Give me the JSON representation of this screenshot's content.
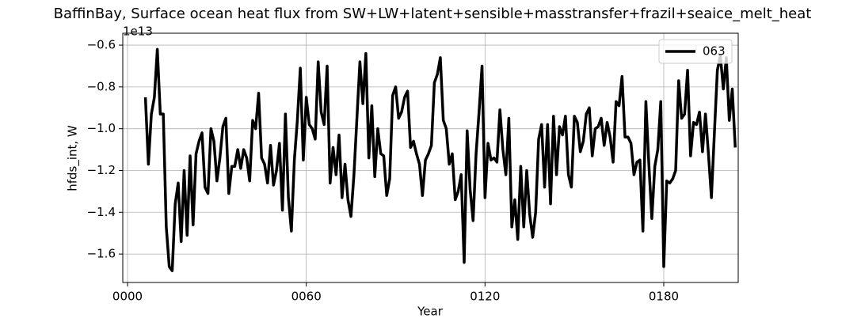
{
  "chart_data": {
    "type": "line",
    "title": "BaffinBay, Surface ocean heat flux from SW+LW+latent+sensible+masstransfer+frazil+seaice_melt_heat",
    "xlabel": "Year",
    "ylabel": "hfds_int, W",
    "offset_label": "1e13",
    "x": [
      6,
      7,
      8,
      9,
      10,
      11,
      12,
      13,
      14,
      15,
      16,
      17,
      18,
      19,
      20,
      21,
      22,
      23,
      24,
      25,
      26,
      27,
      28,
      29,
      30,
      31,
      32,
      33,
      34,
      35,
      36,
      37,
      38,
      39,
      40,
      41,
      42,
      43,
      44,
      45,
      46,
      47,
      48,
      49,
      50,
      51,
      52,
      53,
      54,
      55,
      56,
      57,
      58,
      59,
      60,
      61,
      62,
      63,
      64,
      65,
      66,
      67,
      68,
      69,
      70,
      71,
      72,
      73,
      74,
      75,
      76,
      77,
      78,
      79,
      80,
      81,
      82,
      83,
      84,
      85,
      86,
      87,
      88,
      89,
      90,
      91,
      92,
      93,
      94,
      95,
      96,
      97,
      98,
      99,
      100,
      101,
      102,
      103,
      104,
      105,
      106,
      107,
      108,
      109,
      110,
      111,
      112,
      113,
      114,
      115,
      116,
      117,
      118,
      119,
      120,
      121,
      122,
      123,
      124,
      125,
      126,
      127,
      128,
      129,
      130,
      131,
      132,
      133,
      134,
      135,
      136,
      137,
      138,
      139,
      140,
      141,
      142,
      143,
      144,
      145,
      146,
      147,
      148,
      149,
      150,
      151,
      152,
      153,
      154,
      155,
      156,
      157,
      158,
      159,
      160,
      161,
      162,
      163,
      164,
      165,
      166,
      167,
      168,
      169,
      170,
      171,
      172,
      173,
      174,
      175,
      176,
      177,
      178,
      179,
      180,
      181,
      182,
      183,
      184,
      185,
      186,
      187,
      188,
      189,
      190,
      191,
      192,
      193,
      194,
      195,
      196,
      197,
      198,
      199,
      200,
      201,
      202,
      203,
      204
    ],
    "series": [
      {
        "name": "063",
        "color": "#000000",
        "values": [
          -0.85,
          -1.17,
          -0.93,
          -0.85,
          -0.62,
          -0.93,
          -0.93,
          -1.47,
          -1.66,
          -1.68,
          -1.36,
          -1.26,
          -1.54,
          -1.2,
          -1.51,
          -1.13,
          -1.46,
          -1.12,
          -1.06,
          -1.02,
          -1.28,
          -1.31,
          -1.0,
          -1.06,
          -1.25,
          -1.14,
          -0.99,
          -0.95,
          -1.31,
          -1.18,
          -1.18,
          -1.1,
          -1.19,
          -1.1,
          -1.14,
          -1.25,
          -0.96,
          -1.0,
          -0.83,
          -1.14,
          -1.17,
          -1.26,
          -1.08,
          -1.27,
          -1.2,
          -1.07,
          -1.39,
          -0.93,
          -1.33,
          -1.49,
          -1.15,
          -0.96,
          -0.71,
          -1.15,
          -0.85,
          -0.98,
          -1.0,
          -1.05,
          -0.68,
          -0.92,
          -0.98,
          -0.7,
          -1.26,
          -1.09,
          -1.22,
          -1.03,
          -1.33,
          -1.17,
          -1.34,
          -1.42,
          -1.22,
          -0.95,
          -0.68,
          -0.88,
          -0.64,
          -1.14,
          -0.89,
          -1.23,
          -1.0,
          -1.12,
          -1.13,
          -1.32,
          -1.24,
          -0.84,
          -0.8,
          -0.95,
          -0.92,
          -0.85,
          -0.82,
          -1.09,
          -1.06,
          -1.12,
          -1.17,
          -1.32,
          -1.15,
          -1.12,
          -1.08,
          -0.78,
          -0.74,
          -0.66,
          -0.96,
          -1.0,
          -1.17,
          -1.12,
          -1.34,
          -1.3,
          -1.22,
          -1.64,
          -1.01,
          -1.29,
          -1.44,
          -1.12,
          -0.92,
          -0.7,
          -1.33,
          -1.07,
          -1.15,
          -1.14,
          -1.16,
          -0.91,
          -1.1,
          -1.22,
          -0.95,
          -1.47,
          -1.34,
          -1.53,
          -1.18,
          -1.47,
          -1.2,
          -1.41,
          -1.52,
          -1.4,
          -1.05,
          -0.98,
          -1.28,
          -0.98,
          -1.36,
          -0.94,
          -1.22,
          -0.99,
          -1.03,
          -0.94,
          -1.22,
          -1.28,
          -0.94,
          -0.97,
          -1.11,
          -1.06,
          -0.93,
          -0.9,
          -1.13,
          -1.0,
          -0.99,
          -0.95,
          -1.08,
          -0.97,
          -1.04,
          -1.16,
          -0.87,
          -0.89,
          -0.75,
          -1.04,
          -1.04,
          -1.07,
          -1.22,
          -1.16,
          -1.15,
          -1.49,
          -0.87,
          -1.17,
          -1.43,
          -1.18,
          -1.1,
          -0.87,
          -1.66,
          -1.25,
          -1.26,
          -1.24,
          -1.2,
          -0.77,
          -0.95,
          -0.93,
          -0.72,
          -1.13,
          -0.97,
          -0.98,
          -0.92,
          -1.11,
          -0.93,
          -1.12,
          -1.33,
          -1.02,
          -0.72,
          -0.65,
          -0.81,
          -0.66,
          -0.96,
          -0.81,
          -1.09
        ]
      }
    ],
    "xlim": [
      -1.6,
      205
    ],
    "ylim": [
      -1.736,
      -0.543
    ],
    "xticks": [
      {
        "value": 0,
        "label": "0000"
      },
      {
        "value": 60,
        "label": "0060"
      },
      {
        "value": 120,
        "label": "0120"
      },
      {
        "value": 180,
        "label": "0180"
      }
    ],
    "yticks": [
      {
        "value": -1.6,
        "label": "−1.6"
      },
      {
        "value": -1.4,
        "label": "−1.4"
      },
      {
        "value": -1.2,
        "label": "−1.2"
      },
      {
        "value": -1.0,
        "label": "−1.0"
      },
      {
        "value": -0.8,
        "label": "−0.8"
      },
      {
        "value": -0.6,
        "label": "−0.6"
      }
    ],
    "grid": true,
    "legend": "upper right"
  }
}
